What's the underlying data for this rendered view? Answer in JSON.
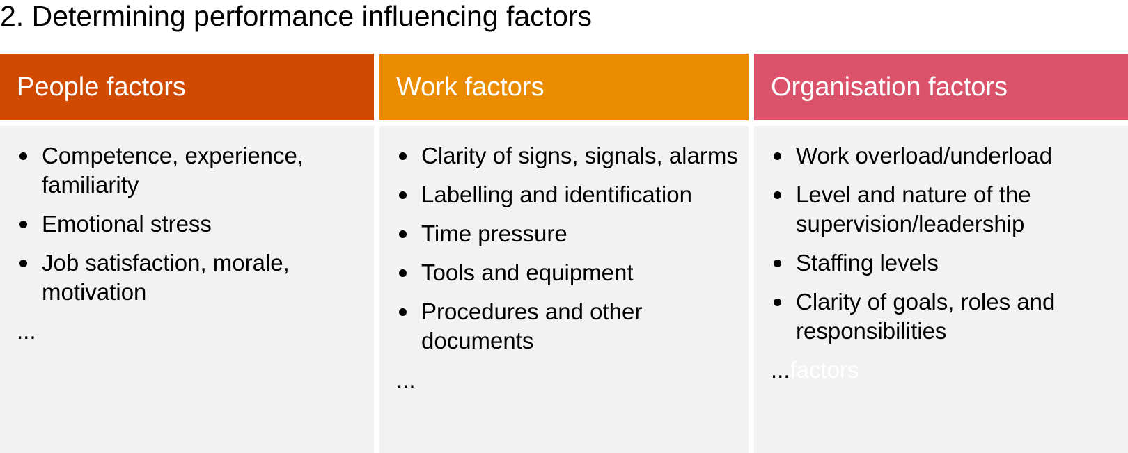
{
  "title": "2. Determining performance influencing factors",
  "columns": [
    {
      "header": "People factors",
      "color": "#D04A02",
      "items": [
        "Competence, experience, familiarity",
        "Emotional stress",
        "Job satisfaction, morale, motivation"
      ],
      "more": "..."
    },
    {
      "header": "Work factors",
      "color": "#EB8C00",
      "items": [
        "Clarity of signs, signals, alarms",
        "Labelling and identification",
        "Time pressure",
        "Tools and equipment",
        "Procedures and other documents"
      ],
      "more": "..."
    },
    {
      "header": "Organisation factors",
      "color": "#DB536A",
      "items": [
        "Work overload/underload",
        "Level and nature of the supervision/leadership",
        "Staffing levels",
        "Clarity of goals, roles and responsibilities"
      ],
      "more": "...",
      "ghost_text": "factors"
    }
  ]
}
